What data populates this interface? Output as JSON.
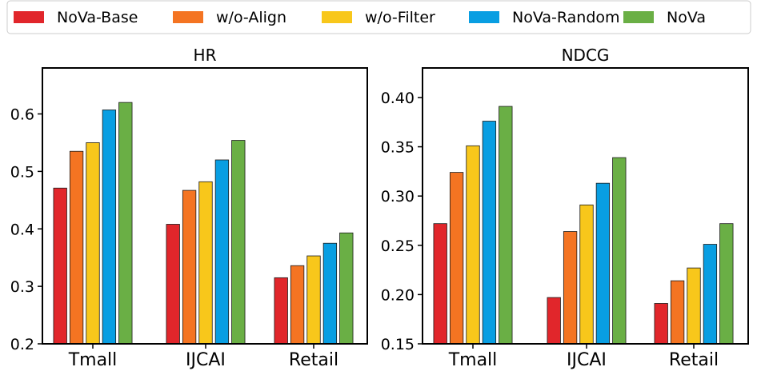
{
  "legend": [
    {
      "label": "NoVa-Base",
      "color": "#e1262b"
    },
    {
      "label": "w/o-Align",
      "color": "#f47422"
    },
    {
      "label": "w/o-Filter",
      "color": "#f8c71b"
    },
    {
      "label": "NoVa-Random",
      "color": "#089ee2"
    },
    {
      "label": "NoVa",
      "color": "#6aaf45"
    }
  ],
  "chart_data": [
    {
      "type": "bar",
      "title": "HR",
      "categories": [
        "Tmall",
        "IJCAI",
        "Retail"
      ],
      "ylim": [
        0.2,
        0.68
      ],
      "yticks": [
        0.2,
        0.3,
        0.4,
        0.5,
        0.6
      ],
      "ytick_labels": [
        "0.2",
        "0.3",
        "0.4",
        "0.5",
        "0.6"
      ],
      "series": [
        {
          "name": "NoVa-Base",
          "values": [
            0.471,
            0.408,
            0.315
          ]
        },
        {
          "name": "w/o-Align",
          "values": [
            0.535,
            0.467,
            0.336
          ]
        },
        {
          "name": "w/o-Filter",
          "values": [
            0.55,
            0.482,
            0.353
          ]
        },
        {
          "name": "NoVa-Random",
          "values": [
            0.607,
            0.52,
            0.375
          ]
        },
        {
          "name": "NoVa",
          "values": [
            0.62,
            0.554,
            0.393
          ]
        }
      ]
    },
    {
      "type": "bar",
      "title": "NDCG",
      "categories": [
        "Tmall",
        "IJCAI",
        "Retail"
      ],
      "ylim": [
        0.15,
        0.43
      ],
      "yticks": [
        0.15,
        0.2,
        0.25,
        0.3,
        0.35,
        0.4
      ],
      "ytick_labels": [
        "0.15",
        "0.20",
        "0.25",
        "0.30",
        "0.35",
        "0.40"
      ],
      "series": [
        {
          "name": "NoVa-Base",
          "values": [
            0.272,
            0.197,
            0.191
          ]
        },
        {
          "name": "w/o-Align",
          "values": [
            0.324,
            0.264,
            0.214
          ]
        },
        {
          "name": "w/o-Filter",
          "values": [
            0.351,
            0.291,
            0.227
          ]
        },
        {
          "name": "NoVa-Random",
          "values": [
            0.376,
            0.313,
            0.251
          ]
        },
        {
          "name": "NoVa",
          "values": [
            0.391,
            0.339,
            0.272
          ]
        }
      ]
    }
  ]
}
